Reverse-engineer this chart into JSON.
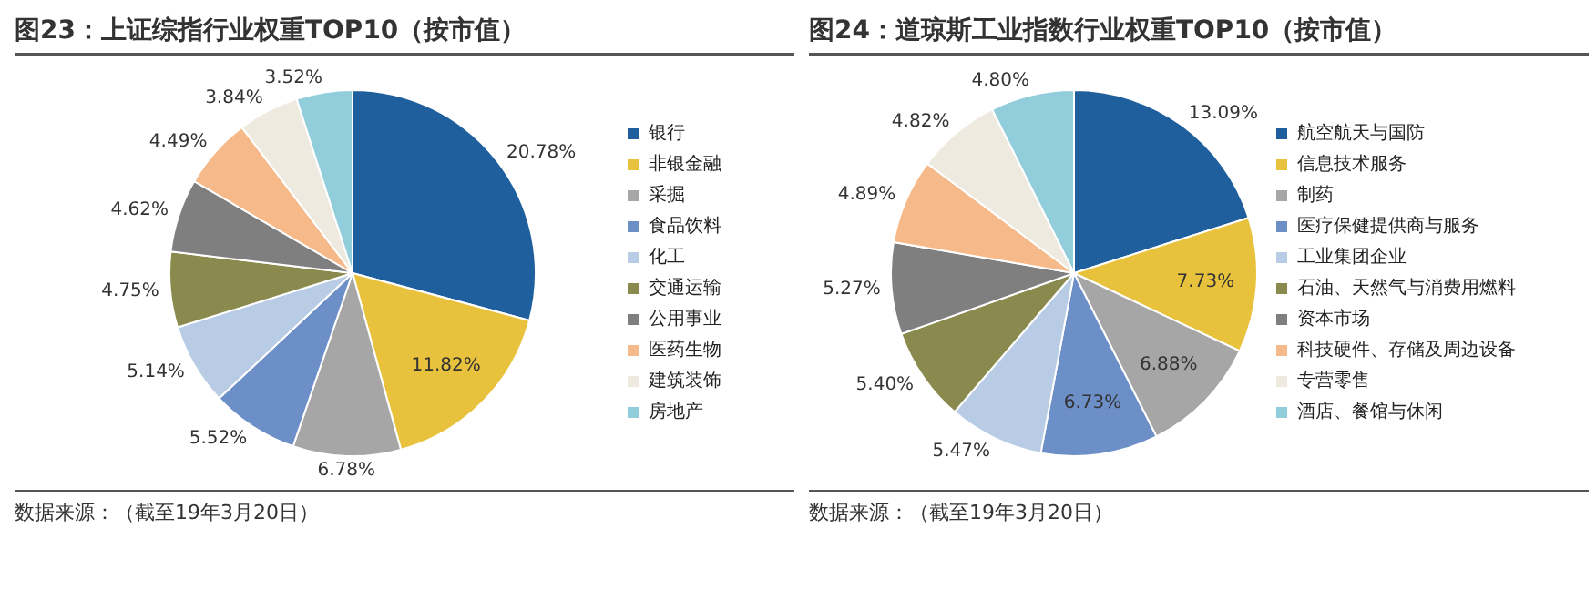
{
  "chart_data": [
    {
      "type": "pie",
      "title": "图23：上证综指行业权重TOP10（按市值）",
      "categories": [
        "银行",
        "非银金融",
        "采掘",
        "食品饮料",
        "化工",
        "交通运输",
        "公用事业",
        "医药生物",
        "建筑装饰",
        "房地产"
      ],
      "values": [
        20.78,
        11.82,
        6.78,
        5.52,
        5.14,
        4.75,
        4.62,
        4.49,
        3.84,
        3.52
      ],
      "value_labels": [
        "20.78%",
        "11.82%",
        "6.78%",
        "5.52%",
        "5.14%",
        "4.75%",
        "4.62%",
        "4.49%",
        "3.84%",
        "3.52%"
      ],
      "colors": [
        "#1f5f9e",
        "#e8c23c",
        "#a6a6a6",
        "#6d8fc8",
        "#b9cce6",
        "#8a8a4e",
        "#7f7f7f",
        "#f5b98a",
        "#eeeae0",
        "#92cddc"
      ],
      "legend": "right",
      "annotations": [
        "数据来源：（截至19年3月20日）"
      ]
    },
    {
      "type": "pie",
      "title": "图24：道琼斯工业指数行业权重TOP10（按市值）",
      "categories": [
        "航空航天与国防",
        "信息技术服务",
        "制药",
        "医疗保健提供商与服务",
        "工业集团企业",
        "石油、天然气与消费用燃料",
        "资本市场",
        "科技硬件、存储及周边设备",
        "专营零售",
        "酒店、餐馆与休闲"
      ],
      "values": [
        13.09,
        7.73,
        6.88,
        6.73,
        5.47,
        5.4,
        5.27,
        4.89,
        4.82,
        4.8
      ],
      "value_labels": [
        "13.09%",
        "7.73%",
        "6.88%",
        "6.73%",
        "5.47%",
        "5.40%",
        "5.27%",
        "4.89%",
        "4.82%",
        "4.80%"
      ],
      "colors": [
        "#1f5f9e",
        "#e8c23c",
        "#a6a6a6",
        "#6d8fc8",
        "#b9cce6",
        "#8a8a4e",
        "#7f7f7f",
        "#f5b98a",
        "#eeeae0",
        "#92cddc"
      ],
      "legend": "right",
      "annotations": [
        "数据来源：（截至19年3月20日）"
      ]
    }
  ]
}
